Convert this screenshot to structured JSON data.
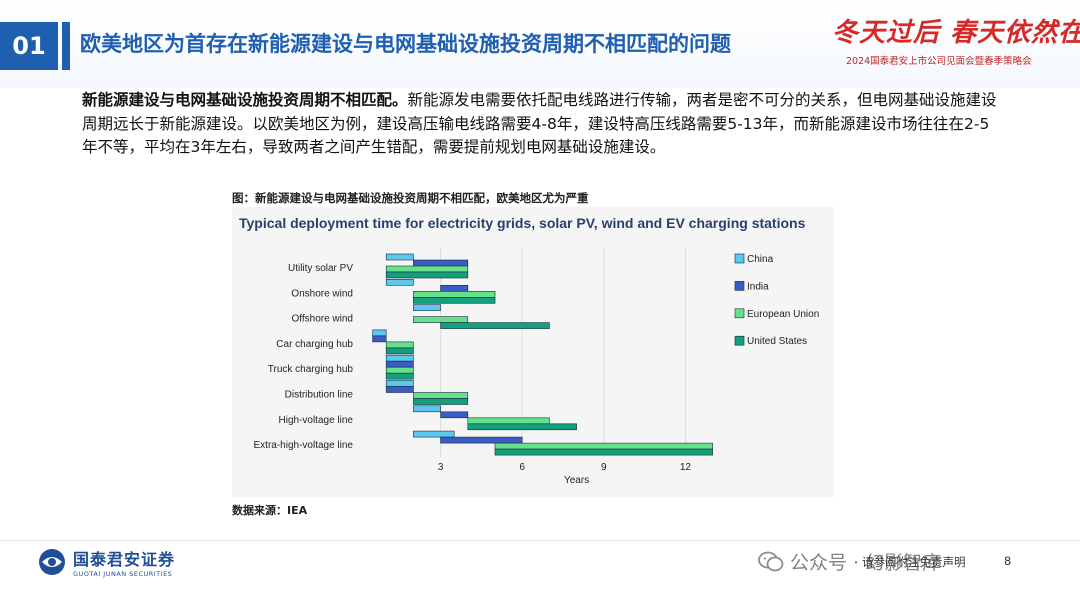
{
  "header": {
    "section_number": "01",
    "title": "欧美地区为首存在新能源建设与电网基础设施投资周期不相匹配的问题",
    "slogan": "冬天过后 春天依然在",
    "event_subtitle": "2024国泰君安上市公司见面会暨春季策略会"
  },
  "body": {
    "lead_bold": "新能源建设与电网基础设施投资周期不相匹配。",
    "text": "新能源发电需要依托配电线路进行传输，两者是密不可分的关系，但电网基础设施建设周期远长于新能源建设。以欧美地区为例，建设高压输电线路需要4-8年，建设特高压线路需要5-13年，而新能源建设市场往往在2-5年不等，平均在3年左右，导致两者之间产生错配，需要提前规划电网基础设施建设。"
  },
  "figure": {
    "caption": "图：新能源建设与电网基础设施投资周期不相匹配，欧美地区尤为严重",
    "source": "数据来源：IEA"
  },
  "chart_data": {
    "type": "bar",
    "orientation": "horizontal-range",
    "title": "Typical deployment time for electricity grids, solar PV, wind and EV charging stations",
    "xlabel": "Years",
    "ylabel": "",
    "xlim": [
      0,
      13
    ],
    "xticks": [
      3,
      6,
      9,
      12
    ],
    "grid": "vertical",
    "legend_position": "right",
    "categories": [
      "Utility solar PV",
      "Onshore wind",
      "Offshore wind",
      "Car charging hub",
      "Truck charging hub",
      "Distribution line",
      "High-voltage line",
      "Extra-high-voltage line"
    ],
    "series": [
      {
        "name": "China",
        "color": "#5bc8ef",
        "ranges": [
          [
            1,
            2
          ],
          [
            1,
            2
          ],
          [
            2,
            3
          ],
          [
            0.5,
            1
          ],
          [
            1,
            2
          ],
          [
            1,
            2
          ],
          [
            2,
            3
          ],
          [
            2,
            3.5
          ]
        ]
      },
      {
        "name": "India",
        "color": "#3b5cc4",
        "ranges": [
          [
            2,
            4
          ],
          [
            3,
            4
          ],
          null,
          [
            0.5,
            1
          ],
          [
            1,
            2
          ],
          [
            1,
            2
          ],
          [
            3,
            4
          ],
          [
            3,
            6
          ]
        ]
      },
      {
        "name": "European Union",
        "color": "#66e08a",
        "ranges": [
          [
            1,
            4
          ],
          [
            2,
            5
          ],
          [
            2,
            4
          ],
          [
            1,
            2
          ],
          [
            1,
            2
          ],
          [
            2,
            4
          ],
          [
            4,
            7
          ],
          [
            5,
            13
          ]
        ]
      },
      {
        "name": "United States",
        "color": "#14a07a",
        "ranges": [
          [
            1,
            4
          ],
          [
            2,
            5
          ],
          [
            3,
            7
          ],
          [
            1,
            2
          ],
          [
            1,
            2
          ],
          [
            2,
            4
          ],
          [
            4,
            8
          ],
          [
            5,
            13
          ]
        ]
      }
    ]
  },
  "footer": {
    "company_cn": "国泰君安证券",
    "company_en": "GUOTAI JUNAN SECURITIES",
    "disclaimer": "请参阅附注免责声明",
    "page_number": "8",
    "watermark": "公众号 · 幻影智库"
  }
}
